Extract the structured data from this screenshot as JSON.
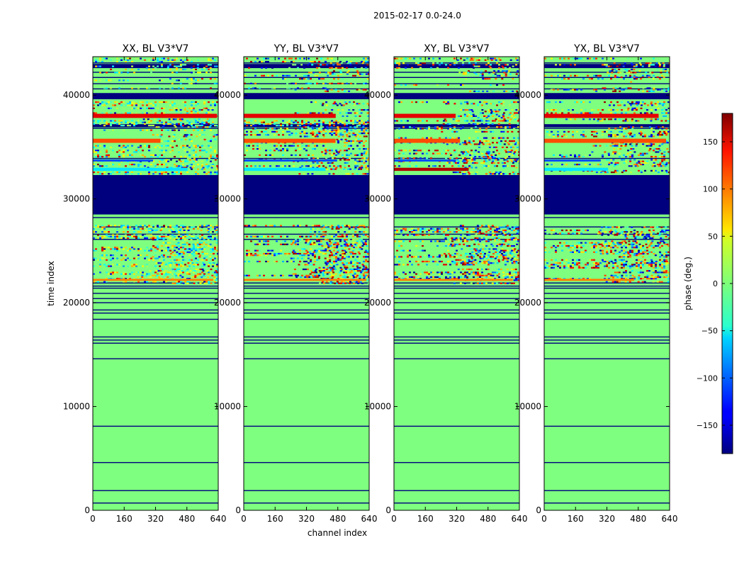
{
  "figure": {
    "suptitle": "2015-02-17 0.0-24.0"
  },
  "colorbar": {
    "label": "phase (deg.)",
    "range": [
      -180,
      180
    ],
    "ticks": [
      150,
      100,
      50,
      0,
      -50,
      -100,
      -150
    ],
    "colormap": "jet"
  },
  "chart_data": [
    {
      "type": "heatmap",
      "title": "XX, BL V3*V7",
      "xlabel": "",
      "ylabel": "time index",
      "xlim": [
        0,
        640
      ],
      "ylim": [
        0,
        43700
      ],
      "xticks": [
        0,
        160,
        320,
        480,
        640
      ],
      "yticks": [
        0,
        10000,
        20000,
        30000,
        40000
      ],
      "colorbar_ref": "phase (deg.)"
    },
    {
      "type": "heatmap",
      "title": "YY, BL V3*V7",
      "xlabel": "channel index",
      "ylabel": "",
      "xlim": [
        0,
        640
      ],
      "ylim": [
        0,
        43700
      ],
      "xticks": [
        0,
        160,
        320,
        480,
        640
      ],
      "yticks": [
        0,
        10000,
        20000,
        30000,
        40000
      ],
      "colorbar_ref": "phase (deg.)"
    },
    {
      "type": "heatmap",
      "title": "XY, BL V3*V7",
      "xlabel": "",
      "ylabel": "",
      "xlim": [
        0,
        640
      ],
      "ylim": [
        0,
        43700
      ],
      "xticks": [
        0,
        160,
        320,
        480,
        640
      ],
      "yticks": [
        0,
        10000,
        20000,
        30000,
        40000
      ],
      "colorbar_ref": "phase (deg.)"
    },
    {
      "type": "heatmap",
      "title": "YX, BL V3*V7",
      "xlabel": "",
      "ylabel": "",
      "xlim": [
        0,
        640
      ],
      "ylim": [
        0,
        43700
      ],
      "xticks": [
        0,
        160,
        320,
        480,
        640
      ],
      "yticks": [
        0,
        10000,
        20000,
        30000,
        40000
      ],
      "colorbar_ref": "phase (deg.)"
    }
  ]
}
